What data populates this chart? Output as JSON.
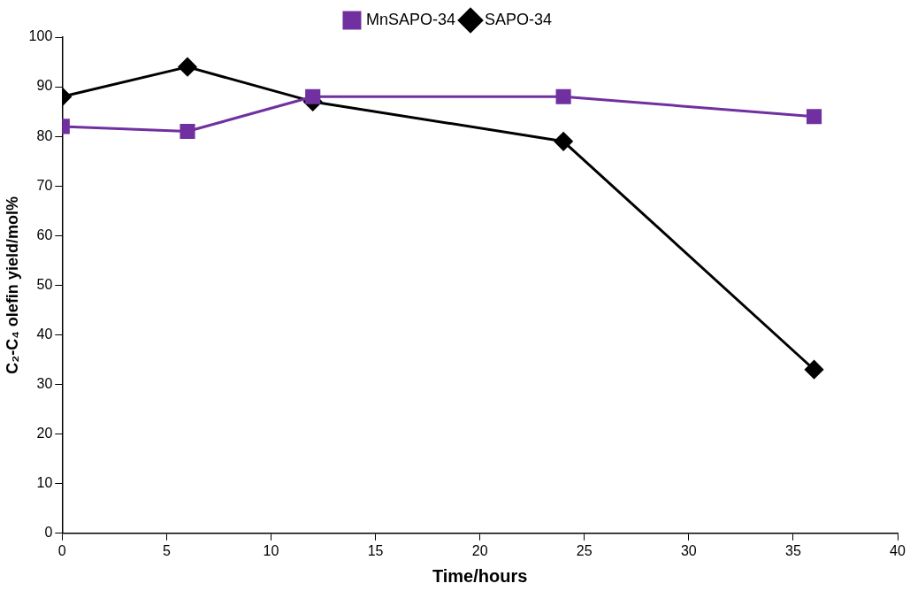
{
  "chart_data": {
    "type": "line",
    "xlabel": "Time/hours",
    "ylabel": "C₂-C₄ olefin yield/mol%",
    "x": [
      0,
      6,
      12,
      24,
      36
    ],
    "series": [
      {
        "name": "SAPO-34",
        "color": "#000000",
        "marker": "diamond",
        "values": [
          88,
          94,
          87,
          79,
          33
        ]
      },
      {
        "name": "MnSAPO-34",
        "color": "#7030a0",
        "marker": "square",
        "values": [
          82,
          81,
          88,
          88,
          84
        ]
      }
    ],
    "xlim": [
      0,
      40
    ],
    "xticks": [
      0,
      5,
      10,
      15,
      20,
      25,
      30,
      35,
      40
    ],
    "ylim": [
      0,
      100
    ],
    "yticks": [
      0,
      10,
      20,
      30,
      40,
      50,
      60,
      70,
      80,
      90,
      100
    ],
    "grid": false,
    "legend": "top",
    "line_style": "solid"
  }
}
